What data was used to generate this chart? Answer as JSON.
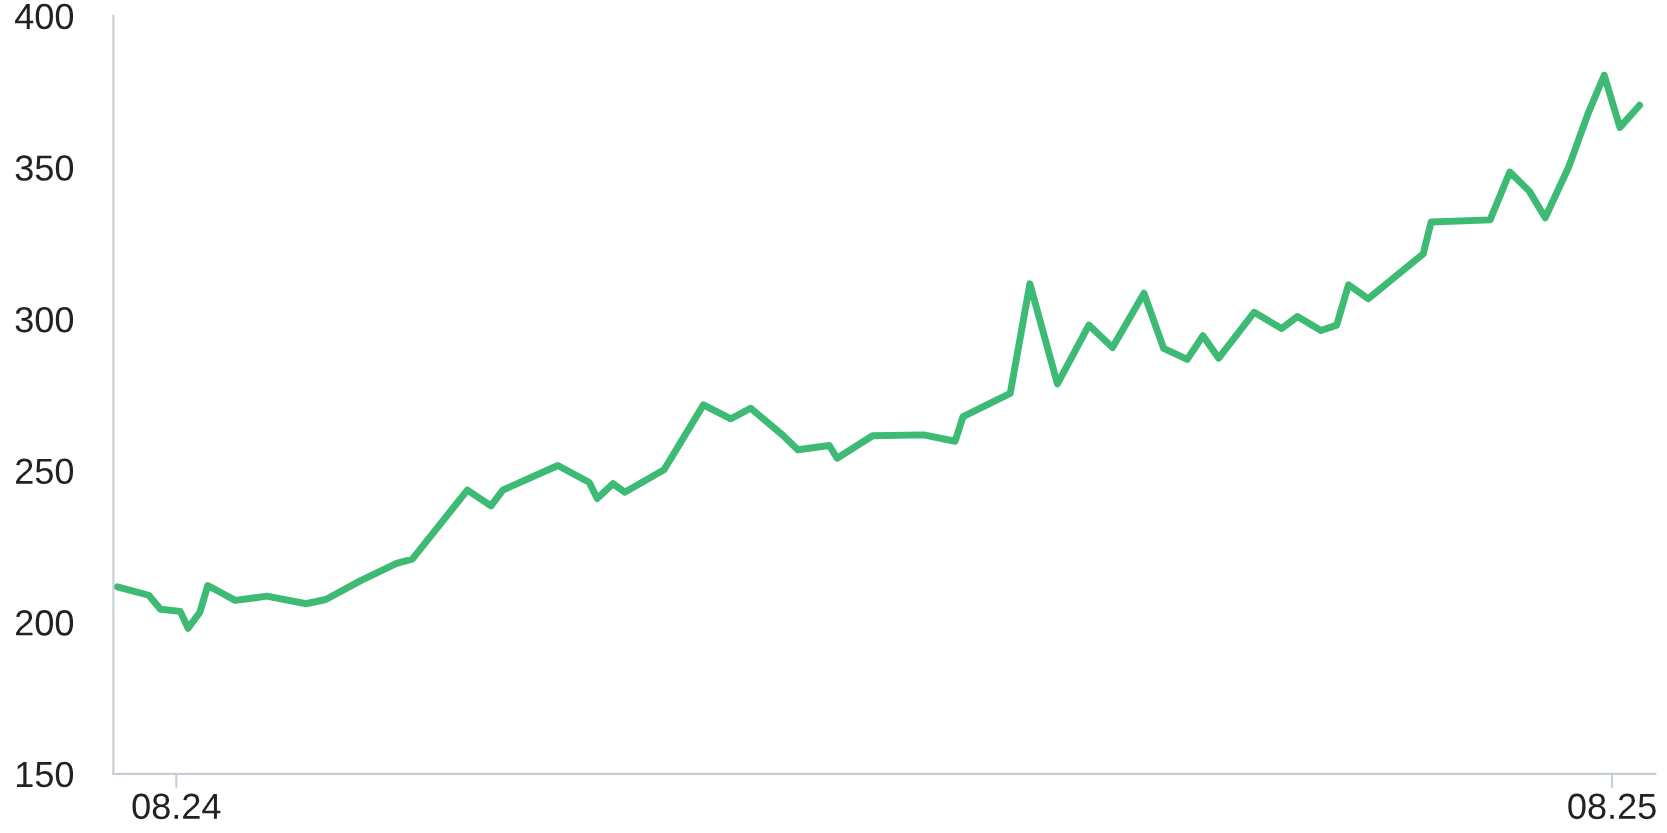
{
  "chart_data": {
    "type": "line",
    "x": [
      "2024-07-17",
      "2024-07-25",
      "2024-07-28",
      "2024-08-02",
      "2024-08-04",
      "2024-08-07",
      "2024-08-09",
      "2024-08-16",
      "2024-08-24",
      "2024-09-03",
      "2024-09-08",
      "2024-09-17",
      "2024-09-26",
      "2024-09-30",
      "2024-10-14",
      "2024-10-20",
      "2024-10-23",
      "2024-11-06",
      "2024-11-14",
      "2024-11-16",
      "2024-11-20",
      "2024-11-23",
      "2024-12-03",
      "2024-12-13",
      "2024-12-20",
      "2024-12-25",
      "2025-01-02",
      "2025-01-06",
      "2025-01-14",
      "2025-01-16",
      "2025-01-25",
      "2025-02-07",
      "2025-02-15",
      "2025-02-17",
      "2025-03-01",
      "2025-03-06",
      "2025-03-13",
      "2025-03-21",
      "2025-03-27",
      "2025-04-04",
      "2025-04-09",
      "2025-04-15",
      "2025-04-19",
      "2025-04-23",
      "2025-05-02",
      "2025-05-09",
      "2025-05-13",
      "2025-05-19",
      "2025-05-23",
      "2025-05-26",
      "2025-05-31",
      "2025-06-14",
      "2025-06-16",
      "2025-07-01",
      "2025-07-06",
      "2025-07-11",
      "2025-07-15",
      "2025-07-21",
      "2025-07-26",
      "2025-07-30",
      "2025-08-03",
      "2025-08-08"
    ],
    "series": [
      {
        "color": "#3dba73",
        "values": [
          211.7,
          208.9,
          204.3,
          203.6,
          198.0,
          203.3,
          212.1,
          207.2,
          208.6,
          206.1,
          207.5,
          213.8,
          219.4,
          220.8,
          243.6,
          238.4,
          243.6,
          251.7,
          246.1,
          240.8,
          245.7,
          242.9,
          250.3,
          271.7,
          267.1,
          270.6,
          261.9,
          256.9,
          258.3,
          254.1,
          261.5,
          261.8,
          259.7,
          267.8,
          275.5,
          311.6,
          278.6,
          298.0,
          290.6,
          308.5,
          290.3,
          286.7,
          294.5,
          287.1,
          302.2,
          296.9,
          300.8,
          296.2,
          298.0,
          311.3,
          306.7,
          321.5,
          332.0,
          332.7,
          348.5,
          342.1,
          333.4,
          350.2,
          368.1,
          380.4,
          363.2,
          370.5
        ]
      }
    ],
    "xlim": [
      "2024-07-16",
      "2025-08-12"
    ],
    "xticks": [
      {
        "value": "2024-08",
        "label": "08.24"
      },
      {
        "value": "2025-08",
        "label": "08.25"
      }
    ],
    "ylim": [
      150,
      400
    ],
    "yticks": [
      150,
      200,
      250,
      300,
      350,
      400
    ],
    "grid": false,
    "legend": false,
    "marker": "none",
    "line_style": "solid"
  }
}
